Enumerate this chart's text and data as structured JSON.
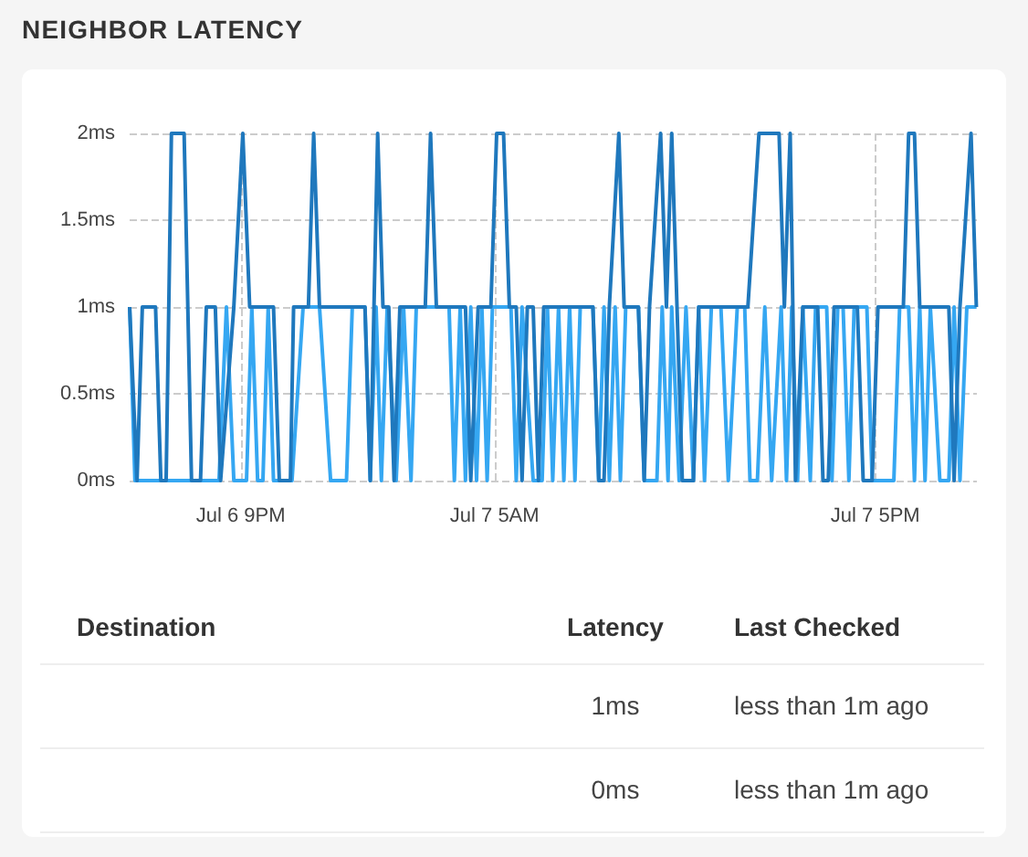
{
  "chart_data": [
    {
      "type": "line",
      "title": "NEIGHBOR LATENCY",
      "grid": true,
      "xlim": [
        "--07-06T17:30",
        "--07-07T20:12"
      ],
      "ylim": [
        0,
        2
      ],
      "xticks": [
        {
          "value": "--07-06T21:00",
          "label": "Jul 6 9PM"
        },
        {
          "value": "--07-07T05:00",
          "label": "Jul 7 5AM"
        },
        {
          "value": "--07-07T17:00",
          "label": "Jul 7 5PM"
        }
      ],
      "yticks": [
        {
          "value": 0,
          "label": "0ms"
        },
        {
          "value": 0.5,
          "label": "0.5ms"
        },
        {
          "value": 1,
          "label": "1ms"
        },
        {
          "value": 1.5,
          "label": "1.5ms"
        },
        {
          "value": 2,
          "label": "2ms"
        }
      ],
      "series": [
        {
          "color": "#35a7f2",
          "x": [
            "--07-06T17:30",
            "--07-06T17:40",
            "--07-06T20:19",
            "--07-06T20:33",
            "--07-06T20:47",
            "--07-06T21:11",
            "--07-06T21:21",
            "--07-06T21:32",
            "--07-06T21:42",
            "--07-06T21:52",
            "--07-06T22:02",
            "--07-06T22:37",
            "--07-06T22:58",
            "--07-06T23:29",
            "--07-06T23:50",
            "--07-07T00:20",
            "--07-07T00:31",
            "--07-07T00:55",
            "--07-07T01:05",
            "--07-07T01:16",
            "--07-07T01:26",
            "--07-07T01:37",
            "--07-07T01:54",
            "--07-07T02:08",
            "--07-07T02:22",
            "--07-07T02:32",
            "--07-07T03:34",
            "--07-07T03:44",
            "--07-07T03:55",
            "--07-07T04:05",
            "--07-07T04:15",
            "--07-07T04:26",
            "--07-07T04:36",
            "--07-07T04:46",
            "--07-07T04:56",
            "--07-07T05:31",
            "--07-07T05:41",
            "--07-07T05:52",
            "--07-07T06:13",
            "--07-07T06:30",
            "--07-07T06:40",
            "--07-07T06:50",
            "--07-07T07:01",
            "--07-07T07:11",
            "--07-07T07:22",
            "--07-07T07:32",
            "--07-07T07:42",
            "--07-07T08:06",
            "--07-07T08:17",
            "--07-07T08:27",
            "--07-07T08:37",
            "--07-07T08:48",
            "--07-07T08:58",
            "--07-07T09:08",
            "--07-07T09:32",
            "--07-07T09:43",
            "--07-07T10:07",
            "--07-07T10:17",
            "--07-07T10:28",
            "--07-07T10:35",
            "--07-07T10:49",
            "--07-07T11:02",
            "--07-07T11:16",
            "--07-07T11:26",
            "--07-07T11:37",
            "--07-07T11:50",
            "--07-07T12:08",
            "--07-07T12:22",
            "--07-07T12:39",
            "--07-07T12:53",
            "--07-07T13:03",
            "--07-07T13:17",
            "--07-07T13:31",
            "--07-07T13:44",
            "--07-07T14:02",
            "--07-07T14:12",
            "--07-07T14:22",
            "--07-07T14:33",
            "--07-07T14:43",
            "--07-07T14:57",
            "--07-07T15:07",
            "--07-07T15:28",
            "--07-07T15:38",
            "--07-07T15:49",
            "--07-07T15:59",
            "--07-07T16:10",
            "--07-07T16:20",
            "--07-07T16:44",
            "--07-07T16:54",
            "--07-07T17:35",
            "--07-07T17:46",
            "--07-07T18:03",
            "--07-07T18:14",
            "--07-07T18:24",
            "--07-07T18:34",
            "--07-07T18:44",
            "--07-07T19:02",
            "--07-07T19:19",
            "--07-07T19:29",
            "--07-07T19:40",
            "--07-07T19:53",
            "--07-07T20:11"
          ],
          "values": [
            1,
            0,
            0,
            1,
            0,
            0,
            1,
            0,
            0,
            1,
            0,
            0,
            1,
            1,
            0,
            0,
            1,
            1,
            0,
            1,
            0,
            1,
            0,
            1,
            0,
            1,
            1,
            0,
            1,
            0,
            1,
            0,
            1,
            0,
            1,
            1,
            0,
            1,
            0,
            0,
            1,
            0,
            1,
            0,
            1,
            0,
            1,
            1,
            0,
            1,
            0,
            1,
            0,
            1,
            1,
            0,
            0,
            1,
            0,
            1,
            0,
            1,
            0,
            1,
            0,
            1,
            1,
            0,
            1,
            1,
            0,
            0,
            1,
            0,
            1,
            0,
            1,
            0,
            1,
            0,
            1,
            1,
            0,
            1,
            1,
            0,
            1,
            1,
            0,
            0,
            1,
            1,
            0,
            1,
            0,
            1,
            0,
            0,
            1,
            0,
            1,
            1
          ]
        },
        {
          "color": "#1f78bd",
          "x": [
            "--07-06T17:30",
            "--07-06T17:44",
            "--07-06T17:54",
            "--07-06T18:19",
            "--07-06T18:29",
            "--07-06T18:39",
            "--07-06T18:49",
            "--07-06T19:13",
            "--07-06T19:27",
            "--07-06T19:44",
            "--07-06T19:55",
            "--07-06T20:12",
            "--07-06T20:22",
            "--07-06T20:47",
            "--07-06T21:04",
            "--07-06T21:17",
            "--07-06T22:02",
            "--07-06T22:13",
            "--07-06T22:34",
            "--07-06T22:40",
            "--07-06T23:08",
            "--07-06T23:18",
            "--07-06T23:29",
            "--07-07T00:55",
            "--07-07T01:05",
            "--07-07T01:19",
            "--07-07T01:29",
            "--07-07T01:40",
            "--07-07T01:50",
            "--07-07T02:01",
            "--07-07T02:49",
            "--07-07T02:59",
            "--07-07T03:10",
            "--07-07T04:05",
            "--07-07T04:15",
            "--07-07T04:29",
            "--07-07T04:43",
            "--07-07T04:53",
            "--07-07T05:04",
            "--07-07T05:17",
            "--07-07T05:28",
            "--07-07T05:41",
            "--07-07T05:52",
            "--07-07T06:02",
            "--07-07T06:13",
            "--07-07T06:23",
            "--07-07T06:33",
            "--07-07T08:06",
            "--07-07T08:17",
            "--07-07T08:27",
            "--07-07T08:37",
            "--07-07T08:55",
            "--07-07T09:05",
            "--07-07T09:32",
            "--07-07T09:43",
            "--07-07T09:53",
            "--07-07T10:14",
            "--07-07T10:25",
            "--07-07T10:35",
            "--07-07T10:45",
            "--07-07T10:55",
            "--07-07T11:16",
            "--07-07T11:26",
            "--07-07T12:43",
            "--07-07T12:59",
            "--07-07T13:20",
            "--07-07T13:58",
            "--07-07T14:08",
            "--07-07T14:19",
            "--07-07T14:29",
            "--07-07T14:43",
            "--07-07T15:11",
            "--07-07T15:21",
            "--07-07T15:31",
            "--07-07T15:42",
            "--07-07T16:26",
            "--07-07T16:37",
            "--07-07T16:54",
            "--07-07T17:05",
            "--07-07T17:43",
            "--07-07T17:53",
            "--07-07T18:03",
            "--07-07T18:14",
            "--07-07T18:24",
            "--07-07T19:19",
            "--07-07T19:29",
            "--07-07T19:40",
            "--07-07T20:01",
            "--07-07T20:11"
          ],
          "values": [
            1,
            0,
            1,
            1,
            0,
            0,
            2,
            2,
            0,
            0,
            1,
            1,
            0,
            1,
            2,
            1,
            1,
            0,
            0,
            1,
            1,
            2,
            1,
            1,
            0,
            2,
            1,
            1,
            0,
            1,
            1,
            2,
            1,
            1,
            0,
            1,
            1,
            1,
            2,
            2,
            1,
            1,
            0,
            1,
            1,
            0,
            1,
            1,
            0,
            0,
            1,
            2,
            1,
            1,
            0,
            1,
            2,
            1,
            2,
            1,
            0,
            0,
            1,
            1,
            1,
            2,
            2,
            1,
            2,
            0,
            1,
            1,
            0,
            0,
            1,
            1,
            0,
            0,
            1,
            1,
            1,
            2,
            2,
            1,
            1,
            0,
            1,
            2,
            1
          ]
        }
      ]
    },
    {
      "type": "other",
      "annotations": [
        "Destination",
        "Latency",
        "Last Checked",
        "1ms",
        "less than 1m ago",
        "0ms",
        "less than 1m ago"
      ]
    }
  ]
}
